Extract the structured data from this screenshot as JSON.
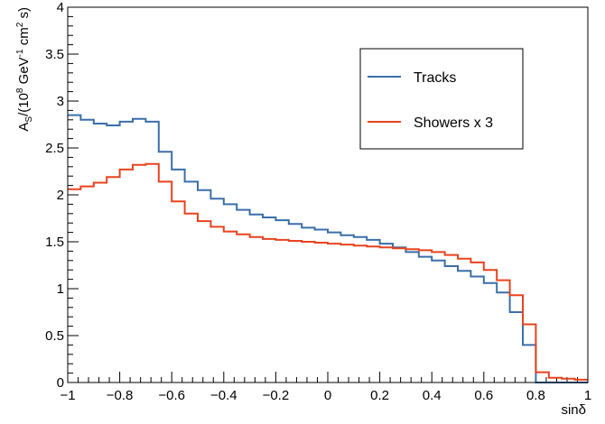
{
  "chart_data": {
    "type": "line",
    "style": "step-histogram",
    "xlabel": "sinδ",
    "ylabel_parts": [
      "A",
      "S",
      "/(10",
      "8",
      " GeV",
      "-1",
      " cm",
      "2",
      " s)"
    ],
    "xlim": [
      -1,
      1
    ],
    "ylim": [
      0,
      4
    ],
    "x_ticks": [
      -1,
      -0.8,
      -0.6,
      -0.4,
      -0.2,
      0,
      0.2,
      0.4,
      0.6,
      0.8,
      1
    ],
    "x_tick_labels": [
      "−1",
      "−0.8",
      "−0.6",
      "−0.4",
      "−0.2",
      "0",
      "0.2",
      "0.4",
      "0.6",
      "0.8",
      "1"
    ],
    "y_ticks": [
      0,
      0.5,
      1,
      1.5,
      2,
      2.5,
      3,
      3.5,
      4
    ],
    "y_tick_labels": [
      "0",
      "0.5",
      "1",
      "1.5",
      "2",
      "2.5",
      "3",
      "3.5",
      "4"
    ],
    "grid": false,
    "legend_position": "top-right",
    "bin_edges": [
      -1,
      -0.95,
      -0.9,
      -0.85,
      -0.8,
      -0.75,
      -0.7,
      -0.65,
      -0.6,
      -0.55,
      -0.5,
      -0.45,
      -0.4,
      -0.35,
      -0.3,
      -0.25,
      -0.2,
      -0.15,
      -0.1,
      -0.05,
      0,
      0.05,
      0.1,
      0.15,
      0.2,
      0.25,
      0.3,
      0.35,
      0.4,
      0.45,
      0.5,
      0.55,
      0.6,
      0.65,
      0.7,
      0.75,
      0.8,
      0.85,
      0.9,
      0.95,
      1
    ],
    "series": [
      {
        "name": "Tracks",
        "color": "#3a6fa8",
        "values": [
          2.85,
          2.8,
          2.76,
          2.74,
          2.78,
          2.81,
          2.78,
          2.46,
          2.27,
          2.14,
          2.05,
          1.96,
          1.9,
          1.84,
          1.79,
          1.76,
          1.73,
          1.69,
          1.65,
          1.63,
          1.6,
          1.57,
          1.55,
          1.52,
          1.48,
          1.44,
          1.39,
          1.34,
          1.3,
          1.24,
          1.19,
          1.13,
          1.06,
          0.96,
          0.75,
          0.4,
          0.0,
          0.0,
          0.0,
          0.0
        ]
      },
      {
        "name": "Showers x 3",
        "color": "#e8431f",
        "values": [
          2.06,
          2.09,
          2.13,
          2.19,
          2.27,
          2.32,
          2.33,
          2.14,
          1.93,
          1.8,
          1.72,
          1.66,
          1.61,
          1.58,
          1.55,
          1.53,
          1.52,
          1.51,
          1.5,
          1.49,
          1.48,
          1.47,
          1.46,
          1.45,
          1.44,
          1.43,
          1.42,
          1.41,
          1.39,
          1.36,
          1.32,
          1.28,
          1.2,
          1.09,
          0.93,
          0.62,
          0.11,
          0.05,
          0.04,
          0.03
        ]
      }
    ]
  }
}
